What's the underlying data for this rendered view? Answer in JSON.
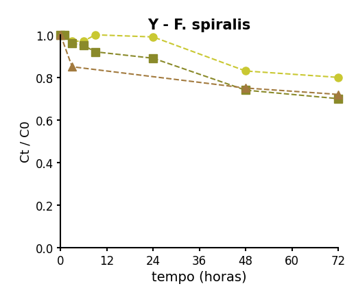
{
  "chart_data": {
    "type": "line",
    "title": "Y - F. spiralis",
    "x_label": "tempo (horas)",
    "y_label": "Ct / C0",
    "xlim": [
      0,
      72
    ],
    "xticks": [
      0,
      12,
      24,
      36,
      48,
      60,
      72
    ],
    "ylim": [
      0,
      1.0
    ],
    "yticks": [
      {
        "value": 0,
        "label": "0.0"
      },
      {
        "value": 0.2,
        "label": "0.2"
      },
      {
        "value": 0.4,
        "label": "0.4"
      },
      {
        "value": 0.6,
        "label": "0.6"
      },
      {
        "value": 0.8,
        "label": "0.8"
      },
      {
        "value": 1.0,
        "label": "1.0"
      }
    ],
    "grid": false,
    "series": [
      {
        "color": "#c9c832",
        "marker": "circle",
        "line_style": "dashed",
        "x": [
          0,
          1,
          3,
          6,
          9,
          24,
          48,
          72
        ],
        "values": [
          1.0,
          1.0,
          0.97,
          0.97,
          1.0,
          0.99,
          0.83,
          0.8
        ]
      },
      {
        "color": "#8a8a2a",
        "marker": "square",
        "line_style": "dashed",
        "x": [
          0,
          1,
          3,
          6,
          9,
          24,
          48,
          72
        ],
        "values": [
          1.0,
          1.0,
          0.96,
          0.95,
          0.92,
          0.89,
          0.74,
          0.7
        ]
      },
      {
        "color": "#a27a3e",
        "marker": "triangle",
        "line_style": "dashed",
        "x": [
          0,
          3,
          48,
          72
        ],
        "values": [
          1.0,
          0.85,
          0.75,
          0.72
        ]
      }
    ]
  }
}
